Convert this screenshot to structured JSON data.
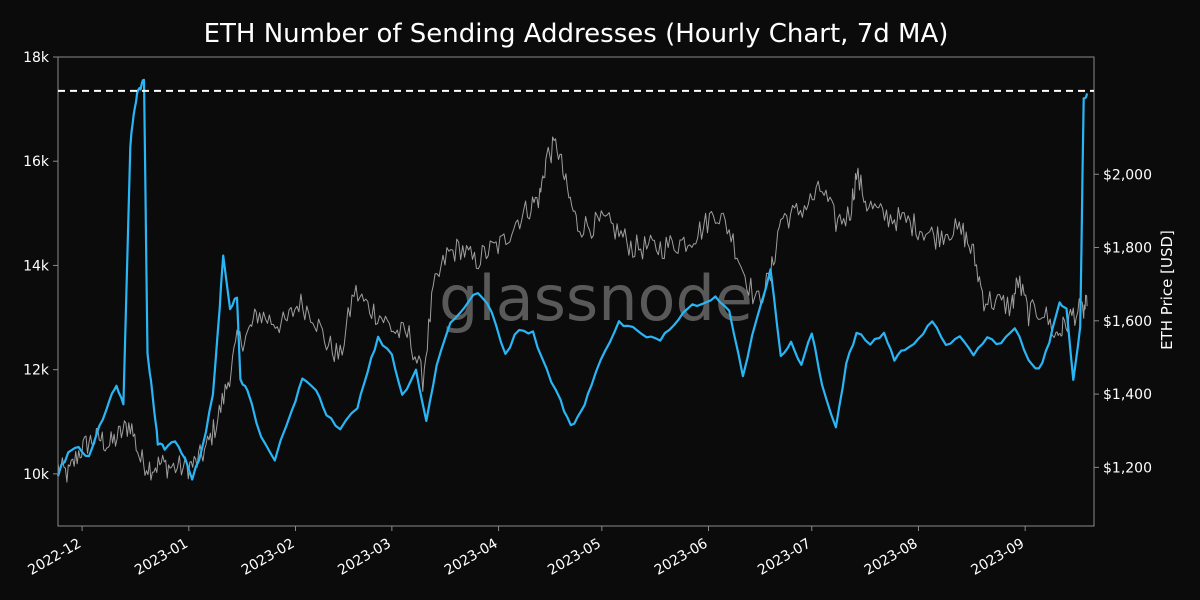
{
  "chart_data": {
    "type": "line",
    "title": "ETH Number of Sending Addresses (Hourly Chart, 7d MA)",
    "watermark": "glassnode",
    "xlabel": "",
    "ylabel_left": "",
    "ylabel_right": "ETH Price [USD]",
    "x_range": [
      "2022-11-24",
      "2023-09-21"
    ],
    "x_ticks": [
      "2022-12",
      "2023-01",
      "2023-02",
      "2023-03",
      "2023-04",
      "2023-05",
      "2023-06",
      "2023-07",
      "2023-08",
      "2023-09"
    ],
    "y_left": {
      "range": [
        9000,
        18000
      ],
      "ticks": [
        10000,
        12000,
        14000,
        16000,
        18000
      ],
      "tick_labels": [
        "10k",
        "12k",
        "14k",
        "16k",
        "18k"
      ]
    },
    "y_right": {
      "range": [
        1040,
        2320
      ],
      "ticks": [
        1200,
        1400,
        1600,
        1800,
        2000
      ],
      "tick_labels": [
        "$1,200",
        "$1,400",
        "$1,600",
        "$1,800",
        "$2,000"
      ]
    },
    "reference_line": {
      "axis": "left",
      "value": 17350,
      "style": "dashed",
      "color": "#ffffff"
    },
    "grid": false,
    "colors": {
      "background": "#0b0b0b",
      "addresses": "#29b6f6",
      "price": "#9e9e9e",
      "axis": "#8a8a8a"
    },
    "series": [
      {
        "axis": "left",
        "color": "#29b6f6",
        "x": [
          "2022-11-24",
          "2022-11-27",
          "2022-11-30",
          "2022-12-03",
          "2022-12-06",
          "2022-12-09",
          "2022-12-11",
          "2022-12-13",
          "2022-12-15",
          "2022-12-16",
          "2022-12-17",
          "2022-12-18",
          "2022-12-19",
          "2022-12-20",
          "2022-12-21",
          "2022-12-22",
          "2022-12-23",
          "2022-12-25",
          "2022-12-28",
          "2022-12-31",
          "2023-01-02",
          "2023-01-05",
          "2023-01-08",
          "2023-01-10",
          "2023-01-11",
          "2023-01-13",
          "2023-01-15",
          "2023-01-16",
          "2023-01-18",
          "2023-01-22",
          "2023-01-26",
          "2023-01-31",
          "2023-02-03",
          "2023-02-07",
          "2023-02-10",
          "2023-02-14",
          "2023-02-19",
          "2023-02-22",
          "2023-02-25",
          "2023-03-01",
          "2023-03-04",
          "2023-03-08",
          "2023-03-11",
          "2023-03-14",
          "2023-03-18",
          "2023-03-22",
          "2023-03-26",
          "2023-03-30",
          "2023-04-03",
          "2023-04-07",
          "2023-04-11",
          "2023-04-15",
          "2023-04-19",
          "2023-04-22",
          "2023-04-25",
          "2023-04-28",
          "2023-05-02",
          "2023-05-06",
          "2023-05-10",
          "2023-05-14",
          "2023-05-18",
          "2023-05-22",
          "2023-05-26",
          "2023-05-30",
          "2023-06-03",
          "2023-06-07",
          "2023-06-11",
          "2023-06-15",
          "2023-06-19",
          "2023-06-22",
          "2023-06-25",
          "2023-06-28",
          "2023-07-01",
          "2023-07-04",
          "2023-07-08",
          "2023-07-11",
          "2023-07-14",
          "2023-07-18",
          "2023-07-22",
          "2023-07-25",
          "2023-07-28",
          "2023-08-01",
          "2023-08-05",
          "2023-08-09",
          "2023-08-13",
          "2023-08-17",
          "2023-08-21",
          "2023-08-25",
          "2023-08-29",
          "2023-09-02",
          "2023-09-05",
          "2023-09-08",
          "2023-09-11",
          "2023-09-13",
          "2023-09-15",
          "2023-09-17",
          "2023-09-18",
          "2023-09-19"
        ],
        "y": [
          10000,
          10400,
          10500,
          10300,
          10900,
          11400,
          11700,
          11300,
          16300,
          16900,
          17300,
          17400,
          17600,
          12300,
          11800,
          11200,
          10600,
          10500,
          10600,
          10300,
          9900,
          10500,
          11500,
          13200,
          14200,
          13200,
          13400,
          11800,
          11600,
          10700,
          10300,
          11200,
          11800,
          11600,
          11100,
          10900,
          11300,
          12000,
          12600,
          12300,
          11500,
          12000,
          11000,
          12100,
          12900,
          13200,
          13500,
          13100,
          12300,
          12800,
          12700,
          12000,
          11400,
          10900,
          11200,
          11700,
          12400,
          12900,
          12800,
          12600,
          12600,
          12900,
          13200,
          13300,
          13400,
          13100,
          11900,
          13000,
          13900,
          12300,
          12500,
          12100,
          12700,
          11700,
          10900,
          12100,
          12700,
          12500,
          12700,
          12200,
          12400,
          12600,
          12900,
          12500,
          12600,
          12300,
          12600,
          12500,
          12800,
          12200,
          12000,
          12500,
          13300,
          13200,
          11800,
          12800,
          17200,
          17300
        ]
      },
      {
        "axis": "right",
        "color": "#9e9e9e",
        "x": [
          "2022-11-24",
          "2022-11-27",
          "2022-11-30",
          "2022-12-03",
          "2022-12-06",
          "2022-12-09",
          "2022-12-12",
          "2022-12-15",
          "2022-12-18",
          "2022-12-21",
          "2022-12-24",
          "2022-12-27",
          "2022-12-31",
          "2023-01-03",
          "2023-01-06",
          "2023-01-09",
          "2023-01-12",
          "2023-01-15",
          "2023-01-18",
          "2023-01-21",
          "2023-01-25",
          "2023-01-29",
          "2023-02-02",
          "2023-02-06",
          "2023-02-10",
          "2023-02-14",
          "2023-02-18",
          "2023-02-22",
          "2023-02-26",
          "2023-03-02",
          "2023-03-06",
          "2023-03-10",
          "2023-03-13",
          "2023-03-17",
          "2023-03-21",
          "2023-03-25",
          "2023-03-29",
          "2023-04-02",
          "2023-04-06",
          "2023-04-10",
          "2023-04-13",
          "2023-04-15",
          "2023-04-18",
          "2023-04-21",
          "2023-04-24",
          "2023-04-28",
          "2023-05-02",
          "2023-05-06",
          "2023-05-10",
          "2023-05-14",
          "2023-05-18",
          "2023-05-22",
          "2023-05-26",
          "2023-05-30",
          "2023-06-03",
          "2023-06-07",
          "2023-06-11",
          "2023-06-15",
          "2023-06-19",
          "2023-06-22",
          "2023-06-26",
          "2023-06-30",
          "2023-07-04",
          "2023-07-08",
          "2023-07-12",
          "2023-07-14",
          "2023-07-17",
          "2023-07-21",
          "2023-07-25",
          "2023-07-29",
          "2023-08-02",
          "2023-08-06",
          "2023-08-10",
          "2023-08-14",
          "2023-08-17",
          "2023-08-20",
          "2023-08-24",
          "2023-08-28",
          "2023-08-30",
          "2023-09-02",
          "2023-09-06",
          "2023-09-10",
          "2023-09-12",
          "2023-09-15",
          "2023-09-18",
          "2023-09-19"
        ],
        "y": [
          1200,
          1180,
          1240,
          1270,
          1280,
          1260,
          1290,
          1320,
          1220,
          1200,
          1210,
          1200,
          1200,
          1210,
          1250,
          1320,
          1420,
          1540,
          1560,
          1620,
          1600,
          1590,
          1650,
          1620,
          1540,
          1500,
          1680,
          1640,
          1610,
          1570,
          1560,
          1440,
          1680,
          1780,
          1800,
          1760,
          1790,
          1810,
          1870,
          1910,
          1940,
          2050,
          2080,
          1950,
          1860,
          1860,
          1870,
          1840,
          1800,
          1800,
          1800,
          1810,
          1820,
          1850,
          1900,
          1850,
          1740,
          1650,
          1720,
          1880,
          1890,
          1920,
          1960,
          1870,
          1890,
          2000,
          1920,
          1890,
          1880,
          1870,
          1850,
          1830,
          1850,
          1840,
          1780,
          1660,
          1650,
          1640,
          1710,
          1620,
          1630,
          1560,
          1580,
          1620,
          1630,
          1640
        ]
      }
    ]
  }
}
